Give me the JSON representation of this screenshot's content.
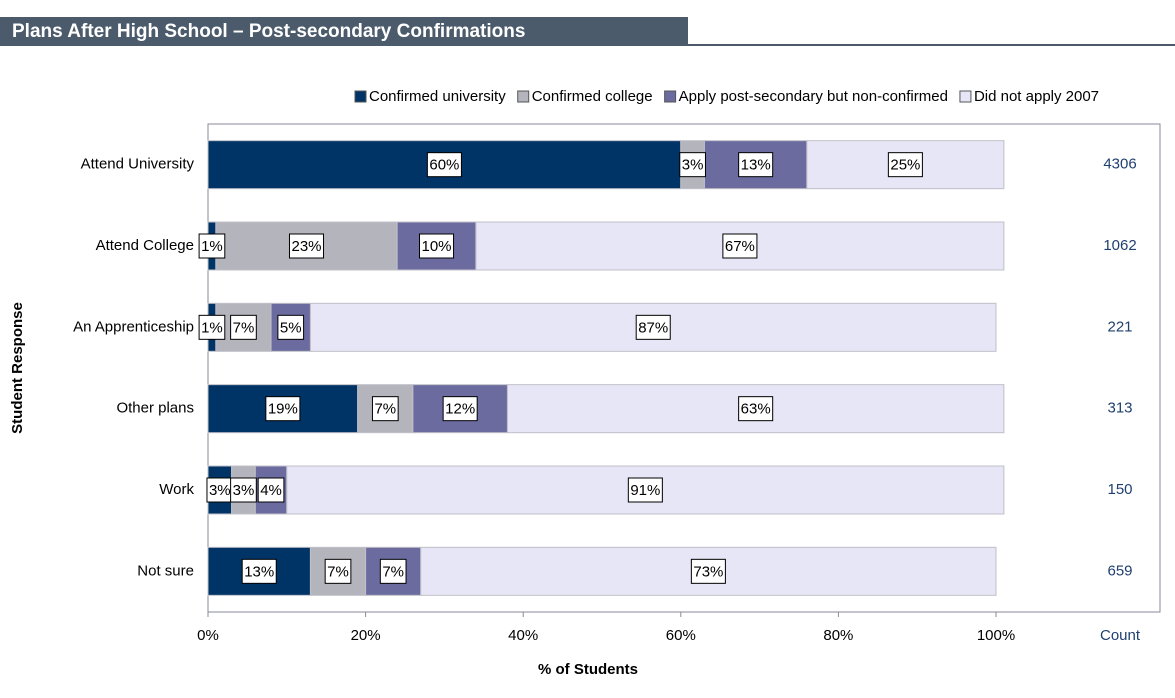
{
  "chart_data": {
    "type": "stacked-bar-horizontal",
    "title": "Plans After High School – Post-secondary Confirmations",
    "xlabel": "% of Students",
    "ylabel": "Student Response",
    "categories": [
      "Attend University",
      "Attend College",
      "An Apprenticeship",
      "Other plans",
      "Work",
      "Not sure"
    ],
    "series": [
      {
        "name": "Confirmed university",
        "color": "#003366",
        "values": [
          60,
          1,
          1,
          19,
          3,
          13
        ],
        "value_labels": [
          "60%",
          "1%",
          "1%",
          "19%",
          "3%",
          "13%"
        ]
      },
      {
        "name": "Confirmed college",
        "color": "#b4b4bc",
        "values": [
          3,
          23,
          7,
          7,
          3,
          7
        ],
        "value_labels": [
          "3%",
          "23%",
          "7%",
          "7%",
          "3%",
          "7%"
        ]
      },
      {
        "name": "Apply post-secondary but non-confirmed",
        "color": "#6b6ba0",
        "values": [
          13,
          10,
          5,
          12,
          4,
          7
        ],
        "value_labels": [
          "13%",
          "10%",
          "5%",
          "12%",
          "4%",
          "7%"
        ]
      },
      {
        "name": "Did not apply 2007",
        "color": "#e6e6f6",
        "values": [
          25,
          67,
          87,
          63,
          91,
          73
        ],
        "value_labels": [
          "25%",
          "67%",
          "87%",
          "63%",
          "91%",
          "73%"
        ]
      }
    ],
    "count_label": "Count",
    "counts": [
      4306,
      1062,
      221,
      313,
      150,
      659
    ],
    "xlim": [
      0,
      100
    ],
    "xticks": [
      {
        "value": 0,
        "label": "0%"
      },
      {
        "value": 20,
        "label": "20%"
      },
      {
        "value": 40,
        "label": "40%"
      },
      {
        "value": 60,
        "label": "60%"
      },
      {
        "value": 80,
        "label": "80%"
      },
      {
        "value": 100,
        "label": "100%"
      }
    ],
    "legend": "top"
  }
}
